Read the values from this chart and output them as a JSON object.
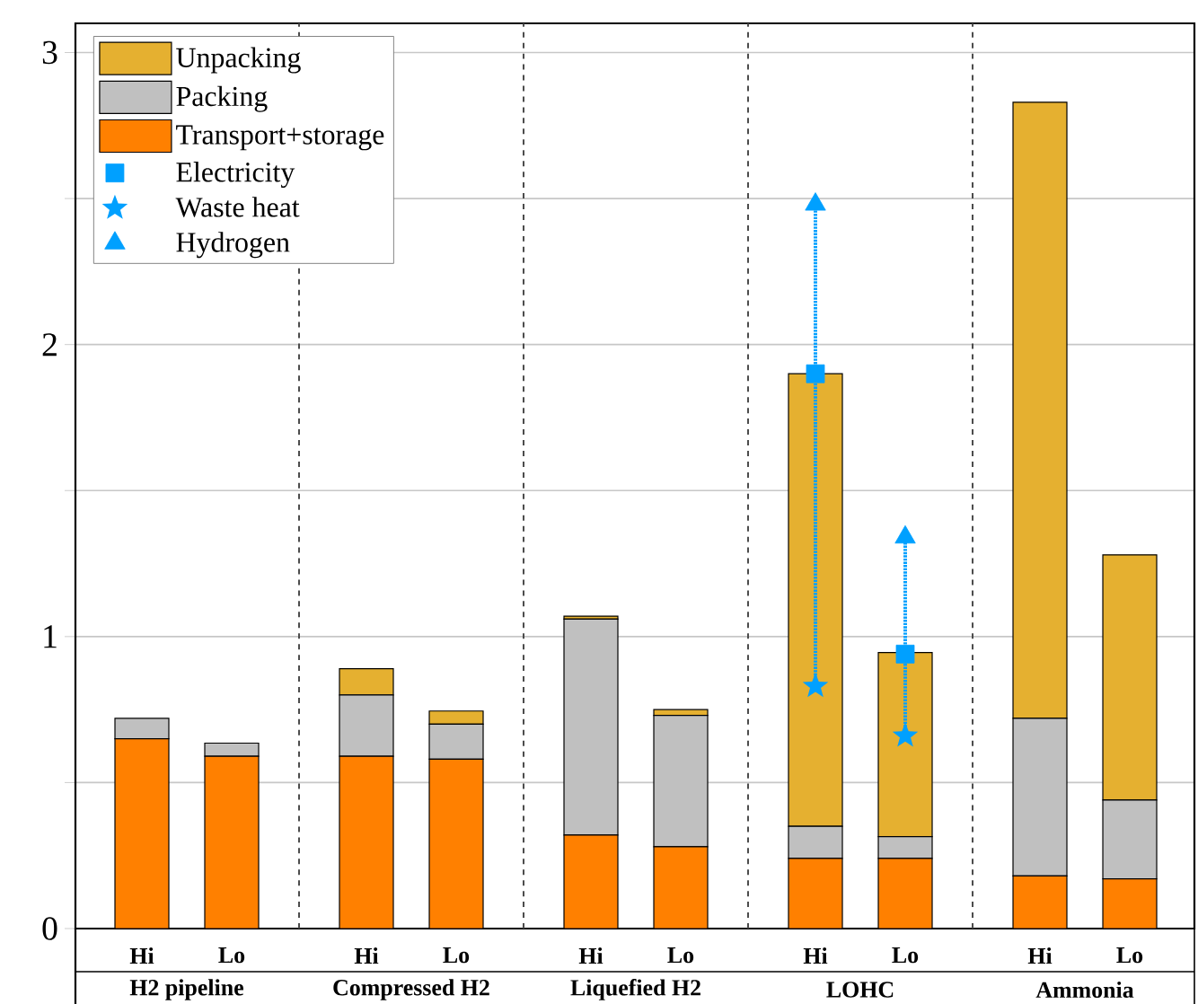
{
  "chart_data": {
    "type": "bar",
    "stacked": true,
    "categories": [
      "Hi",
      "Lo",
      "Hi",
      "Lo",
      "Hi",
      "Lo",
      "Hi",
      "Lo",
      "Hi",
      "Lo"
    ],
    "series": [
      {
        "name": "Transport+storage",
        "color": "#ff8000",
        "values": [
          0.65,
          0.59,
          0.59,
          0.58,
          0.32,
          0.28,
          0.24,
          0.24,
          0.18,
          0.17
        ]
      },
      {
        "name": "Packing",
        "color": "#c0c0c0",
        "values": [
          0.07,
          0.045,
          0.21,
          0.12,
          0.74,
          0.45,
          0.11,
          0.075,
          0.54,
          0.27
        ]
      },
      {
        "name": "Unpacking",
        "color": "#e5b030",
        "values": [
          0,
          0,
          0.09,
          0.045,
          0.01,
          0.02,
          1.55,
          0.63,
          2.11,
          0.84
        ]
      },
      {
        "name": "Electricity",
        "type": "scatter",
        "marker": "square",
        "color": "#00a0ff",
        "line_style": "dotted",
        "values": [
          null,
          null,
          null,
          null,
          null,
          null,
          1.9,
          0.94,
          null,
          null
        ],
        "errors": [
          null,
          null,
          null,
          null,
          null,
          null,
          [
            0.83,
            2.48
          ],
          [
            0.66,
            1.34
          ],
          null,
          null
        ]
      },
      {
        "name": "Waste heat",
        "type": "scatter",
        "marker": "star",
        "color": "#00a0ff",
        "values": [
          null,
          null,
          null,
          null,
          null,
          null,
          0.83,
          0.66,
          null,
          null
        ]
      },
      {
        "name": "Hydrogen",
        "type": "scatter",
        "marker": "triangle",
        "color": "#00a0ff",
        "values": [
          null,
          null,
          null,
          null,
          null,
          null,
          2.48,
          1.34,
          null,
          null
        ]
      }
    ],
    "ylim": [
      0,
      3.1
    ],
    "yticks": [
      0,
      {
        "value": 0.5,
        "label": null
      },
      1,
      {
        "value": 1.5,
        "label": null
      },
      2,
      {
        "value": 2.5,
        "label": null
      },
      3
    ],
    "grid": "y",
    "legend": "top left",
    "annotations": [
      "H2 pipeline",
      "Compressed H2",
      "Liquefied H2",
      "LOHC",
      "Ammonia"
    ]
  }
}
